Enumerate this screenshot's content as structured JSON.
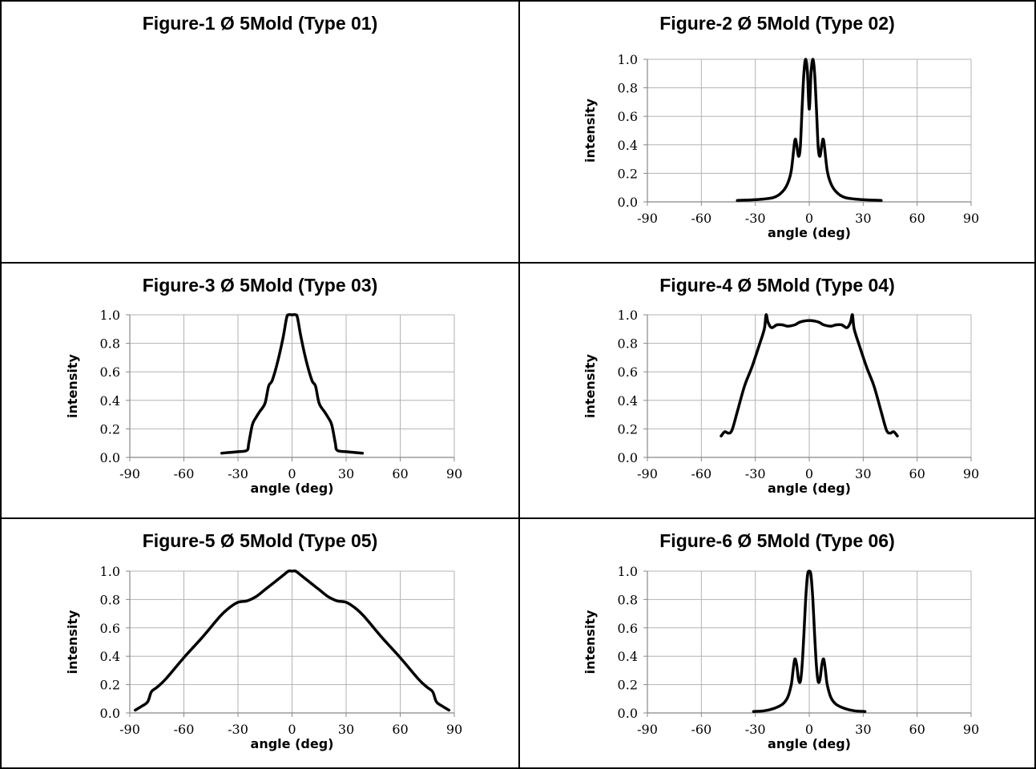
{
  "figures": [
    {
      "title": "Figure-1 Ø 5Mold (Type 01)"
    },
    {
      "title": "Figure-2 Ø 5Mold (Type 02)"
    },
    {
      "title": "Figure-3 Ø 5Mold (Type 03)"
    },
    {
      "title": "Figure-4 Ø 5Mold (Type 04)"
    },
    {
      "title": "Figure-5 Ø 5Mold (Type 05)"
    },
    {
      "title": "Figure-6 Ø 5Mold (Type 06)"
    }
  ],
  "chart_data": [
    {
      "figure": "Figure-2 Ø 5Mold (Type 02)",
      "type": "line",
      "xlabel": "angle (deg)",
      "ylabel": "intensity",
      "xlim": [
        -90,
        90
      ],
      "ylim": [
        0,
        1
      ],
      "xticks": [
        -90,
        -60,
        -30,
        0,
        30,
        60,
        90
      ],
      "yticks": [
        "0.0",
        "0.2",
        "0.4",
        "0.6",
        "0.8",
        "1.0"
      ],
      "grid": true,
      "color": "#000000",
      "series": [
        {
          "x": [
            -40,
            -30,
            -20,
            -15,
            -12,
            -10,
            -8,
            -7,
            -6,
            -5,
            -4,
            -3,
            -2,
            -1,
            0,
            1,
            2,
            3,
            4,
            5,
            6,
            7,
            8,
            10,
            12,
            15,
            20,
            30,
            40
          ],
          "y": [
            0.01,
            0.015,
            0.03,
            0.07,
            0.13,
            0.22,
            0.43,
            0.4,
            0.32,
            0.38,
            0.65,
            0.9,
            1.0,
            0.9,
            0.65,
            0.9,
            1.0,
            0.9,
            0.65,
            0.38,
            0.32,
            0.4,
            0.43,
            0.22,
            0.13,
            0.07,
            0.03,
            0.015,
            0.01
          ]
        }
      ]
    },
    {
      "figure": "Figure-3 Ø 5Mold (Type 03)",
      "type": "line",
      "xlabel": "angle (deg)",
      "ylabel": "intensity",
      "xlim": [
        -90,
        90
      ],
      "ylim": [
        0,
        1
      ],
      "xticks": [
        -90,
        -60,
        -30,
        0,
        30,
        60,
        90
      ],
      "yticks": [
        "0.0",
        "0.2",
        "0.4",
        "0.6",
        "0.8",
        "1.0"
      ],
      "grid": true,
      "color": "#000000",
      "series": [
        {
          "x": [
            -39,
            -30,
            -25,
            -24,
            -22,
            -20,
            -18,
            -15,
            -13,
            -11,
            -8,
            -5,
            -3,
            -2,
            0,
            2,
            3,
            5,
            8,
            11,
            13,
            15,
            18,
            20,
            22,
            24,
            25,
            30,
            39
          ],
          "y": [
            0.03,
            0.04,
            0.05,
            0.1,
            0.23,
            0.28,
            0.32,
            0.38,
            0.5,
            0.54,
            0.67,
            0.84,
            0.98,
            1.0,
            1.0,
            1.0,
            0.98,
            0.84,
            0.67,
            0.54,
            0.5,
            0.38,
            0.32,
            0.28,
            0.23,
            0.1,
            0.05,
            0.04,
            0.03
          ]
        }
      ]
    },
    {
      "figure": "Figure-4 Ø 5Mold (Type 04)",
      "type": "line",
      "xlabel": "angle (deg)",
      "ylabel": "intensity",
      "xlim": [
        -90,
        90
      ],
      "ylim": [
        0,
        1
      ],
      "xticks": [
        -90,
        -60,
        -30,
        0,
        30,
        60,
        90
      ],
      "yticks": [
        "0.0",
        "0.2",
        "0.4",
        "0.6",
        "0.8",
        "1.0"
      ],
      "grid": true,
      "color": "#000000",
      "series": [
        {
          "x": [
            -49,
            -47,
            -45,
            -43,
            -40,
            -36,
            -32,
            -28,
            -25,
            -24,
            -23,
            -21,
            -18,
            -15,
            -12,
            -8,
            -5,
            0,
            5,
            8,
            12,
            15,
            18,
            21,
            23,
            24,
            25,
            28,
            32,
            36,
            40,
            43,
            45,
            47,
            49
          ],
          "y": [
            0.15,
            0.18,
            0.17,
            0.19,
            0.32,
            0.5,
            0.63,
            0.78,
            0.9,
            1.0,
            0.95,
            0.91,
            0.93,
            0.93,
            0.92,
            0.93,
            0.95,
            0.96,
            0.95,
            0.93,
            0.92,
            0.93,
            0.93,
            0.91,
            0.95,
            1.0,
            0.9,
            0.78,
            0.63,
            0.5,
            0.32,
            0.19,
            0.17,
            0.18,
            0.15
          ]
        }
      ]
    },
    {
      "figure": "Figure-5 Ø 5Mold (Type 05)",
      "type": "line",
      "xlabel": "angle (deg)",
      "ylabel": "intensity",
      "xlim": [
        -90,
        90
      ],
      "ylim": [
        0,
        1
      ],
      "xticks": [
        -90,
        -60,
        -30,
        0,
        30,
        60,
        90
      ],
      "yticks": [
        "0.0",
        "0.2",
        "0.4",
        "0.6",
        "0.8",
        "1.0"
      ],
      "grid": true,
      "color": "#000000",
      "series": [
        {
          "x": [
            -87,
            -83,
            -80,
            -78,
            -75,
            -70,
            -60,
            -50,
            -40,
            -35,
            -30,
            -25,
            -20,
            -15,
            -10,
            -5,
            -2,
            0,
            2,
            5,
            10,
            15,
            20,
            25,
            30,
            35,
            40,
            50,
            60,
            70,
            75,
            78,
            80,
            83,
            87
          ],
          "y": [
            0.02,
            0.05,
            0.08,
            0.15,
            0.18,
            0.24,
            0.39,
            0.53,
            0.68,
            0.74,
            0.78,
            0.79,
            0.82,
            0.87,
            0.92,
            0.97,
            1.0,
            1.0,
            1.0,
            0.97,
            0.92,
            0.87,
            0.82,
            0.79,
            0.78,
            0.74,
            0.68,
            0.53,
            0.39,
            0.24,
            0.18,
            0.15,
            0.08,
            0.05,
            0.02
          ]
        }
      ]
    },
    {
      "figure": "Figure-6 Ø 5Mold (Type 06)",
      "type": "line",
      "xlabel": "angle (deg)",
      "ylabel": "intensity",
      "xlim": [
        -90,
        90
      ],
      "ylim": [
        0,
        1
      ],
      "xticks": [
        -90,
        -60,
        -30,
        0,
        30,
        60,
        90
      ],
      "yticks": [
        "0.0",
        "0.2",
        "0.4",
        "0.6",
        "0.8",
        "1.0"
      ],
      "grid": true,
      "color": "#000000",
      "series": [
        {
          "x": [
            -31,
            -25,
            -20,
            -15,
            -12,
            -10,
            -9,
            -8,
            -7,
            -6,
            -5,
            -4,
            -3,
            -2,
            -1,
            0,
            1,
            2,
            3,
            4,
            5,
            6,
            7,
            8,
            9,
            10,
            12,
            15,
            20,
            25,
            31
          ],
          "y": [
            0.01,
            0.015,
            0.03,
            0.06,
            0.11,
            0.2,
            0.3,
            0.38,
            0.34,
            0.24,
            0.22,
            0.33,
            0.55,
            0.8,
            0.97,
            1.0,
            0.97,
            0.8,
            0.55,
            0.33,
            0.22,
            0.24,
            0.34,
            0.38,
            0.3,
            0.2,
            0.11,
            0.06,
            0.03,
            0.015,
            0.01
          ]
        }
      ]
    }
  ]
}
